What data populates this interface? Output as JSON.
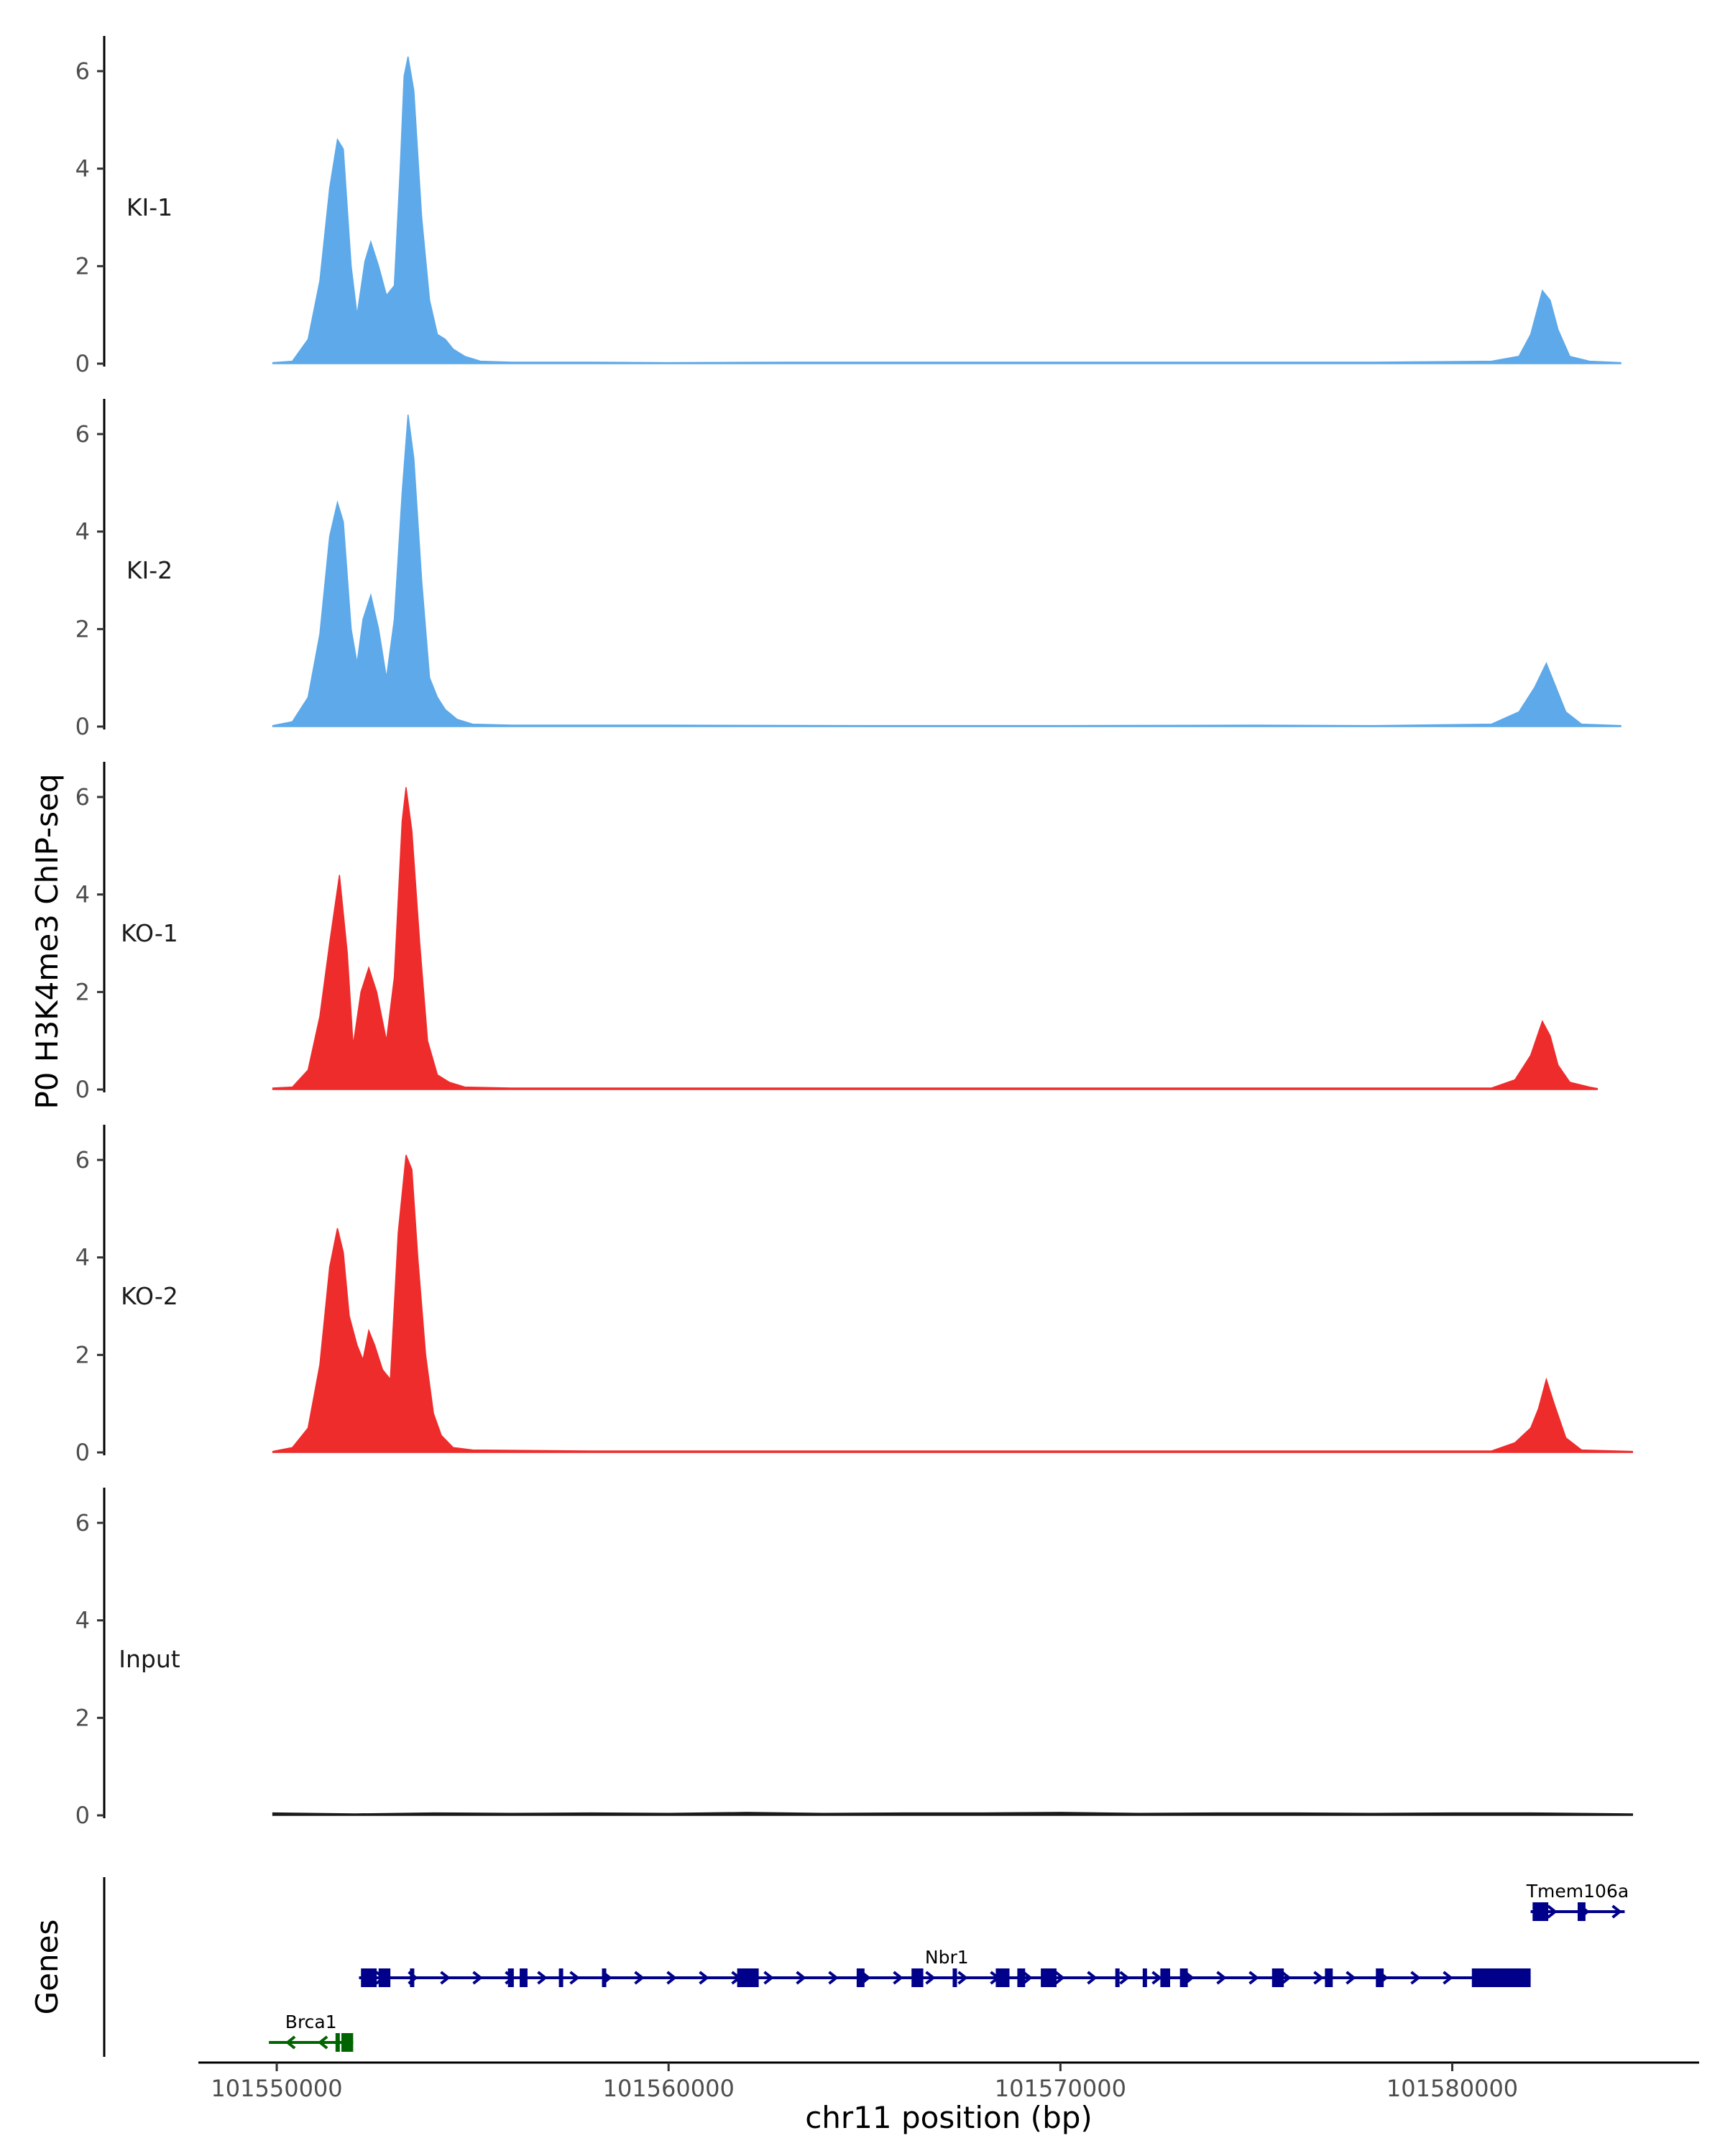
{
  "chart_data": {
    "type": "area",
    "ylabel": "P0 H3K4me3 ChIP-seq",
    "xlabel": "chr11 position (bp)",
    "x_ticks": [
      "101550000",
      "101560000",
      "101570000",
      "101580000"
    ],
    "x_tick_values": [
      101550000,
      101560000,
      101570000,
      101580000
    ],
    "xlim": [
      101548000,
      101586300
    ],
    "ylim": [
      0,
      6.7
    ],
    "y_ticks": [
      "0",
      "2",
      "4",
      "6"
    ],
    "y_tick_values": [
      0,
      2,
      4,
      6
    ],
    "colors": {
      "KI": "#5DA9E9",
      "KO": "#EE2C2C",
      "Input": "#1a1a1a",
      "gene_plus": "#00008B",
      "gene_minus": "#006400"
    },
    "tracks": [
      {
        "label": "KI-1",
        "color": "#5DA9E9",
        "points": [
          [
            101549900,
            0.02
          ],
          [
            101550400,
            0.05
          ],
          [
            101550800,
            0.5
          ],
          [
            101551100,
            1.7
          ],
          [
            101551350,
            3.6
          ],
          [
            101551550,
            4.6
          ],
          [
            101551700,
            4.4
          ],
          [
            101551900,
            2.0
          ],
          [
            101552050,
            1.0
          ],
          [
            101552250,
            2.1
          ],
          [
            101552400,
            2.5
          ],
          [
            101552600,
            2.0
          ],
          [
            101552800,
            1.4
          ],
          [
            101553000,
            1.6
          ],
          [
            101553150,
            4.0
          ],
          [
            101553250,
            5.9
          ],
          [
            101553350,
            6.3
          ],
          [
            101553500,
            5.6
          ],
          [
            101553700,
            3.0
          ],
          [
            101553900,
            1.3
          ],
          [
            101554100,
            0.6
          ],
          [
            101554300,
            0.5
          ],
          [
            101554500,
            0.3
          ],
          [
            101554800,
            0.15
          ],
          [
            101555200,
            0.05
          ],
          [
            101556000,
            0.03
          ],
          [
            101558000,
            0.03
          ],
          [
            101560000,
            0.02
          ],
          [
            101563000,
            0.03
          ],
          [
            101566000,
            0.03
          ],
          [
            101570000,
            0.03
          ],
          [
            101574000,
            0.03
          ],
          [
            101578000,
            0.03
          ],
          [
            101581000,
            0.05
          ],
          [
            101581700,
            0.15
          ],
          [
            101582000,
            0.6
          ],
          [
            101582300,
            1.5
          ],
          [
            101582500,
            1.3
          ],
          [
            101582700,
            0.7
          ],
          [
            101583000,
            0.15
          ],
          [
            101583500,
            0.05
          ],
          [
            101584300,
            0.02
          ]
        ]
      },
      {
        "label": "KI-2",
        "color": "#5DA9E9",
        "points": [
          [
            101549900,
            0.02
          ],
          [
            101550400,
            0.1
          ],
          [
            101550800,
            0.6
          ],
          [
            101551100,
            1.9
          ],
          [
            101551350,
            3.9
          ],
          [
            101551550,
            4.6
          ],
          [
            101551700,
            4.2
          ],
          [
            101551900,
            2.0
          ],
          [
            101552050,
            1.3
          ],
          [
            101552200,
            2.2
          ],
          [
            101552400,
            2.7
          ],
          [
            101552600,
            2.0
          ],
          [
            101552800,
            1.0
          ],
          [
            101553000,
            2.2
          ],
          [
            101553200,
            4.8
          ],
          [
            101553350,
            6.4
          ],
          [
            101553500,
            5.5
          ],
          [
            101553700,
            3.0
          ],
          [
            101553900,
            1.0
          ],
          [
            101554100,
            0.6
          ],
          [
            101554300,
            0.35
          ],
          [
            101554600,
            0.15
          ],
          [
            101555000,
            0.05
          ],
          [
            101556000,
            0.03
          ],
          [
            101560000,
            0.03
          ],
          [
            101565000,
            0.02
          ],
          [
            101570000,
            0.02
          ],
          [
            101575000,
            0.03
          ],
          [
            101578000,
            0.02
          ],
          [
            101581000,
            0.05
          ],
          [
            101581700,
            0.3
          ],
          [
            101582100,
            0.8
          ],
          [
            101582400,
            1.3
          ],
          [
            101582600,
            0.9
          ],
          [
            101582900,
            0.3
          ],
          [
            101583300,
            0.05
          ],
          [
            101584300,
            0.02
          ]
        ]
      },
      {
        "label": "KO-1",
        "color": "#EE2C2C",
        "points": [
          [
            101549900,
            0.03
          ],
          [
            101550400,
            0.05
          ],
          [
            101550800,
            0.4
          ],
          [
            101551100,
            1.5
          ],
          [
            101551350,
            3.0
          ],
          [
            101551600,
            4.4
          ],
          [
            101551800,
            2.8
          ],
          [
            101551950,
            0.9
          ],
          [
            101552150,
            2.0
          ],
          [
            101552350,
            2.5
          ],
          [
            101552550,
            2.0
          ],
          [
            101552800,
            1.0
          ],
          [
            101553000,
            2.3
          ],
          [
            101553200,
            5.5
          ],
          [
            101553300,
            6.2
          ],
          [
            101553450,
            5.3
          ],
          [
            101553650,
            3.0
          ],
          [
            101553850,
            1.0
          ],
          [
            101554100,
            0.3
          ],
          [
            101554400,
            0.15
          ],
          [
            101554800,
            0.05
          ],
          [
            101556000,
            0.03
          ],
          [
            101560000,
            0.03
          ],
          [
            101565000,
            0.03
          ],
          [
            101570000,
            0.03
          ],
          [
            101575000,
            0.03
          ],
          [
            101578000,
            0.03
          ],
          [
            101581000,
            0.03
          ],
          [
            101581600,
            0.2
          ],
          [
            101582000,
            0.7
          ],
          [
            101582300,
            1.4
          ],
          [
            101582500,
            1.1
          ],
          [
            101582700,
            0.5
          ],
          [
            101583000,
            0.15
          ],
          [
            101583500,
            0.05
          ],
          [
            101583700,
            0.02
          ]
        ]
      },
      {
        "label": "KO-2",
        "color": "#EE2C2C",
        "points": [
          [
            101549900,
            0.02
          ],
          [
            101550400,
            0.1
          ],
          [
            101550800,
            0.5
          ],
          [
            101551100,
            1.8
          ],
          [
            101551350,
            3.8
          ],
          [
            101551550,
            4.6
          ],
          [
            101551700,
            4.1
          ],
          [
            101551850,
            2.8
          ],
          [
            101552050,
            2.2
          ],
          [
            101552200,
            1.9
          ],
          [
            101552350,
            2.5
          ],
          [
            101552500,
            2.2
          ],
          [
            101552700,
            1.7
          ],
          [
            101552900,
            1.5
          ],
          [
            101553100,
            4.5
          ],
          [
            101553300,
            6.1
          ],
          [
            101553450,
            5.8
          ],
          [
            101553600,
            4.0
          ],
          [
            101553800,
            2.0
          ],
          [
            101554000,
            0.8
          ],
          [
            101554200,
            0.35
          ],
          [
            101554500,
            0.1
          ],
          [
            101555000,
            0.05
          ],
          [
            101558000,
            0.03
          ],
          [
            101562000,
            0.03
          ],
          [
            101566000,
            0.03
          ],
          [
            101570000,
            0.03
          ],
          [
            101575000,
            0.03
          ],
          [
            101579000,
            0.03
          ],
          [
            101581000,
            0.03
          ],
          [
            101581600,
            0.2
          ],
          [
            101582000,
            0.5
          ],
          [
            101582200,
            0.9
          ],
          [
            101582400,
            1.5
          ],
          [
            101582600,
            1.0
          ],
          [
            101582900,
            0.3
          ],
          [
            101583300,
            0.05
          ],
          [
            101584600,
            0.02
          ]
        ]
      },
      {
        "label": "Input",
        "color": "#1a1a1a",
        "points": [
          [
            101549900,
            0.05
          ],
          [
            101552000,
            0.03
          ],
          [
            101554000,
            0.05
          ],
          [
            101556000,
            0.04
          ],
          [
            101558000,
            0.05
          ],
          [
            101560000,
            0.04
          ],
          [
            101562000,
            0.06
          ],
          [
            101564000,
            0.04
          ],
          [
            101566000,
            0.05
          ],
          [
            101568000,
            0.05
          ],
          [
            101570000,
            0.06
          ],
          [
            101572000,
            0.04
          ],
          [
            101574000,
            0.05
          ],
          [
            101576000,
            0.05
          ],
          [
            101578000,
            0.04
          ],
          [
            101580000,
            0.05
          ],
          [
            101582000,
            0.05
          ],
          [
            101584600,
            0.03
          ]
        ]
      }
    ],
    "genes_track_label": "Genes",
    "genes": [
      {
        "name": "Brca1",
        "strand": "-",
        "color": "#006400",
        "row": 2,
        "start": 101549800,
        "end": 101551950,
        "exons": [
          [
            101551650,
            101551950
          ],
          [
            101551500,
            101551580
          ]
        ]
      },
      {
        "name": "Nbr1",
        "strand": "+",
        "color": "#00008B",
        "row": 1,
        "start": 101552100,
        "end": 101582000,
        "exons": [
          [
            101552150,
            101552550
          ],
          [
            101552600,
            101552900
          ],
          [
            101553400,
            101553500
          ],
          [
            101555900,
            101556050
          ],
          [
            101556200,
            101556400
          ],
          [
            101557200,
            101557300
          ],
          [
            101558300,
            101558400
          ],
          [
            101561750,
            101562300
          ],
          [
            101564800,
            101565000
          ],
          [
            101566200,
            101566500
          ],
          [
            101567250,
            101567350
          ],
          [
            101568350,
            101568700
          ],
          [
            101568900,
            101569100
          ],
          [
            101569500,
            101569900
          ],
          [
            101571400,
            101571500
          ],
          [
            101572100,
            101572200
          ],
          [
            101572550,
            101572800
          ],
          [
            101573050,
            101573250
          ],
          [
            101575400,
            101575700
          ],
          [
            101576750,
            101576950
          ],
          [
            101578050,
            101578250
          ],
          [
            101580500,
            101582000
          ]
        ]
      },
      {
        "name": "Tmem106a",
        "strand": "+",
        "color": "#00008B",
        "row": 0,
        "start": 101582000,
        "end": 101584400,
        "exons": [
          [
            101582050,
            101582450
          ],
          [
            101583200,
            101583400
          ]
        ]
      }
    ]
  }
}
